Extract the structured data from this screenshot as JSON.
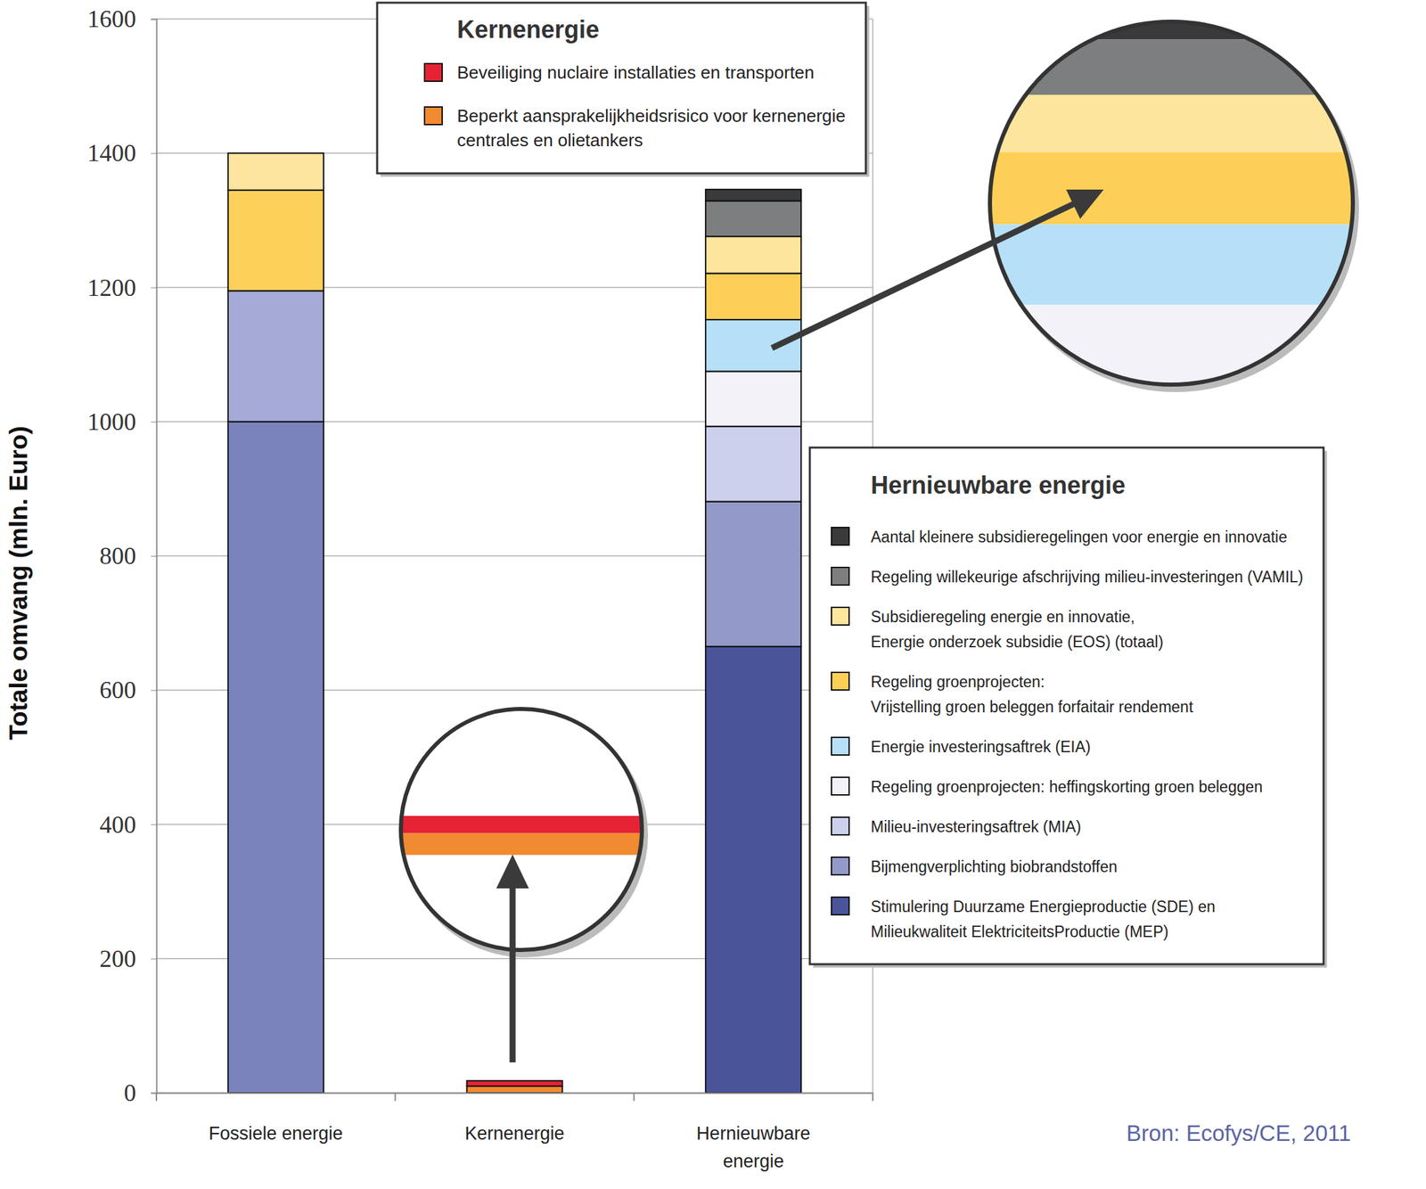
{
  "chart_data": {
    "type": "bar",
    "stacked": true,
    "grid": true,
    "ylabel": "Totale omvang (mln. Euro)",
    "source": "Bron: Ecofys/CE, 2011",
    "categories": [
      "Fossiele energie",
      "Kernenergie",
      "Hernieuwbare\nenergie"
    ],
    "ylim": [
      0,
      1600
    ],
    "yticks": [
      0,
      200,
      400,
      600,
      800,
      1000,
      1200,
      1400,
      1600
    ],
    "series_groups": [
      {
        "title": null,
        "series": [
          {
            "name": null,
            "color": "#7b83bd",
            "values": [
              1000,
              null,
              null
            ]
          },
          {
            "name": null,
            "color": "#a5aad7",
            "values": [
              195,
              null,
              null
            ]
          },
          {
            "name": null,
            "color": "#fdd059",
            "values": [
              150,
              null,
              null
            ]
          },
          {
            "name": null,
            "color": "#fee59f",
            "values": [
              55,
              null,
              null
            ]
          }
        ]
      },
      {
        "title": "Kernenergie",
        "series": [
          {
            "name": "Beperkt aansprakelijkheidsrisico voor kernenergie\ncentrales en olietankers",
            "color": "#f18a30",
            "values": [
              null,
              10,
              null
            ]
          },
          {
            "name": "Beveiliging nuclaire installaties en transporten",
            "color": "#e52334",
            "values": [
              null,
              8,
              null
            ]
          }
        ]
      },
      {
        "title": "Hernieuwbare energie",
        "series": [
          {
            "name": "Stimulering Duurzame Energieproductie (SDE) en\nMilieukwaliteit ElektriciteitsProductie (MEP)",
            "color": "#4a5499",
            "values": [
              null,
              null,
              665
            ]
          },
          {
            "name": "Bijmengverplichting biobrandstoffen",
            "color": "#9399c9",
            "values": [
              null,
              null,
              216
            ]
          },
          {
            "name": "Milieu-investeringsaftrek (MIA)",
            "color": "#cdd0ec",
            "values": [
              null,
              null,
              112
            ]
          },
          {
            "name": "Regeling groenprojecten: heffingskorting groen beleggen",
            "color": "#f2f2f8",
            "values": [
              null,
              null,
              82
            ]
          },
          {
            "name": "Energie investeringsaftrek (EIA)",
            "color": "#b6e0f7",
            "values": [
              null,
              null,
              77
            ]
          },
          {
            "name": "Regeling groenprojecten:\nVrijstelling groen beleggen forfaitair rendement",
            "color": "#fdcf57",
            "values": [
              null,
              null,
              69
            ]
          },
          {
            "name": "Subsidieregeling energie en innovatie,\nEnergie onderzoek subsidie (EOS) (totaal)",
            "color": "#fee59d",
            "values": [
              null,
              null,
              55
            ]
          },
          {
            "name": "Regeling willekeurige afschrijving milieu-investeringen (VAMIL)",
            "color": "#7d7e80",
            "values": [
              null,
              null,
              53
            ]
          },
          {
            "name": "Aantal kleinere subsidieregelingen voor energie en innovatie",
            "color": "#3a3a3c",
            "values": [
              null,
              null,
              17
            ]
          }
        ]
      }
    ]
  }
}
